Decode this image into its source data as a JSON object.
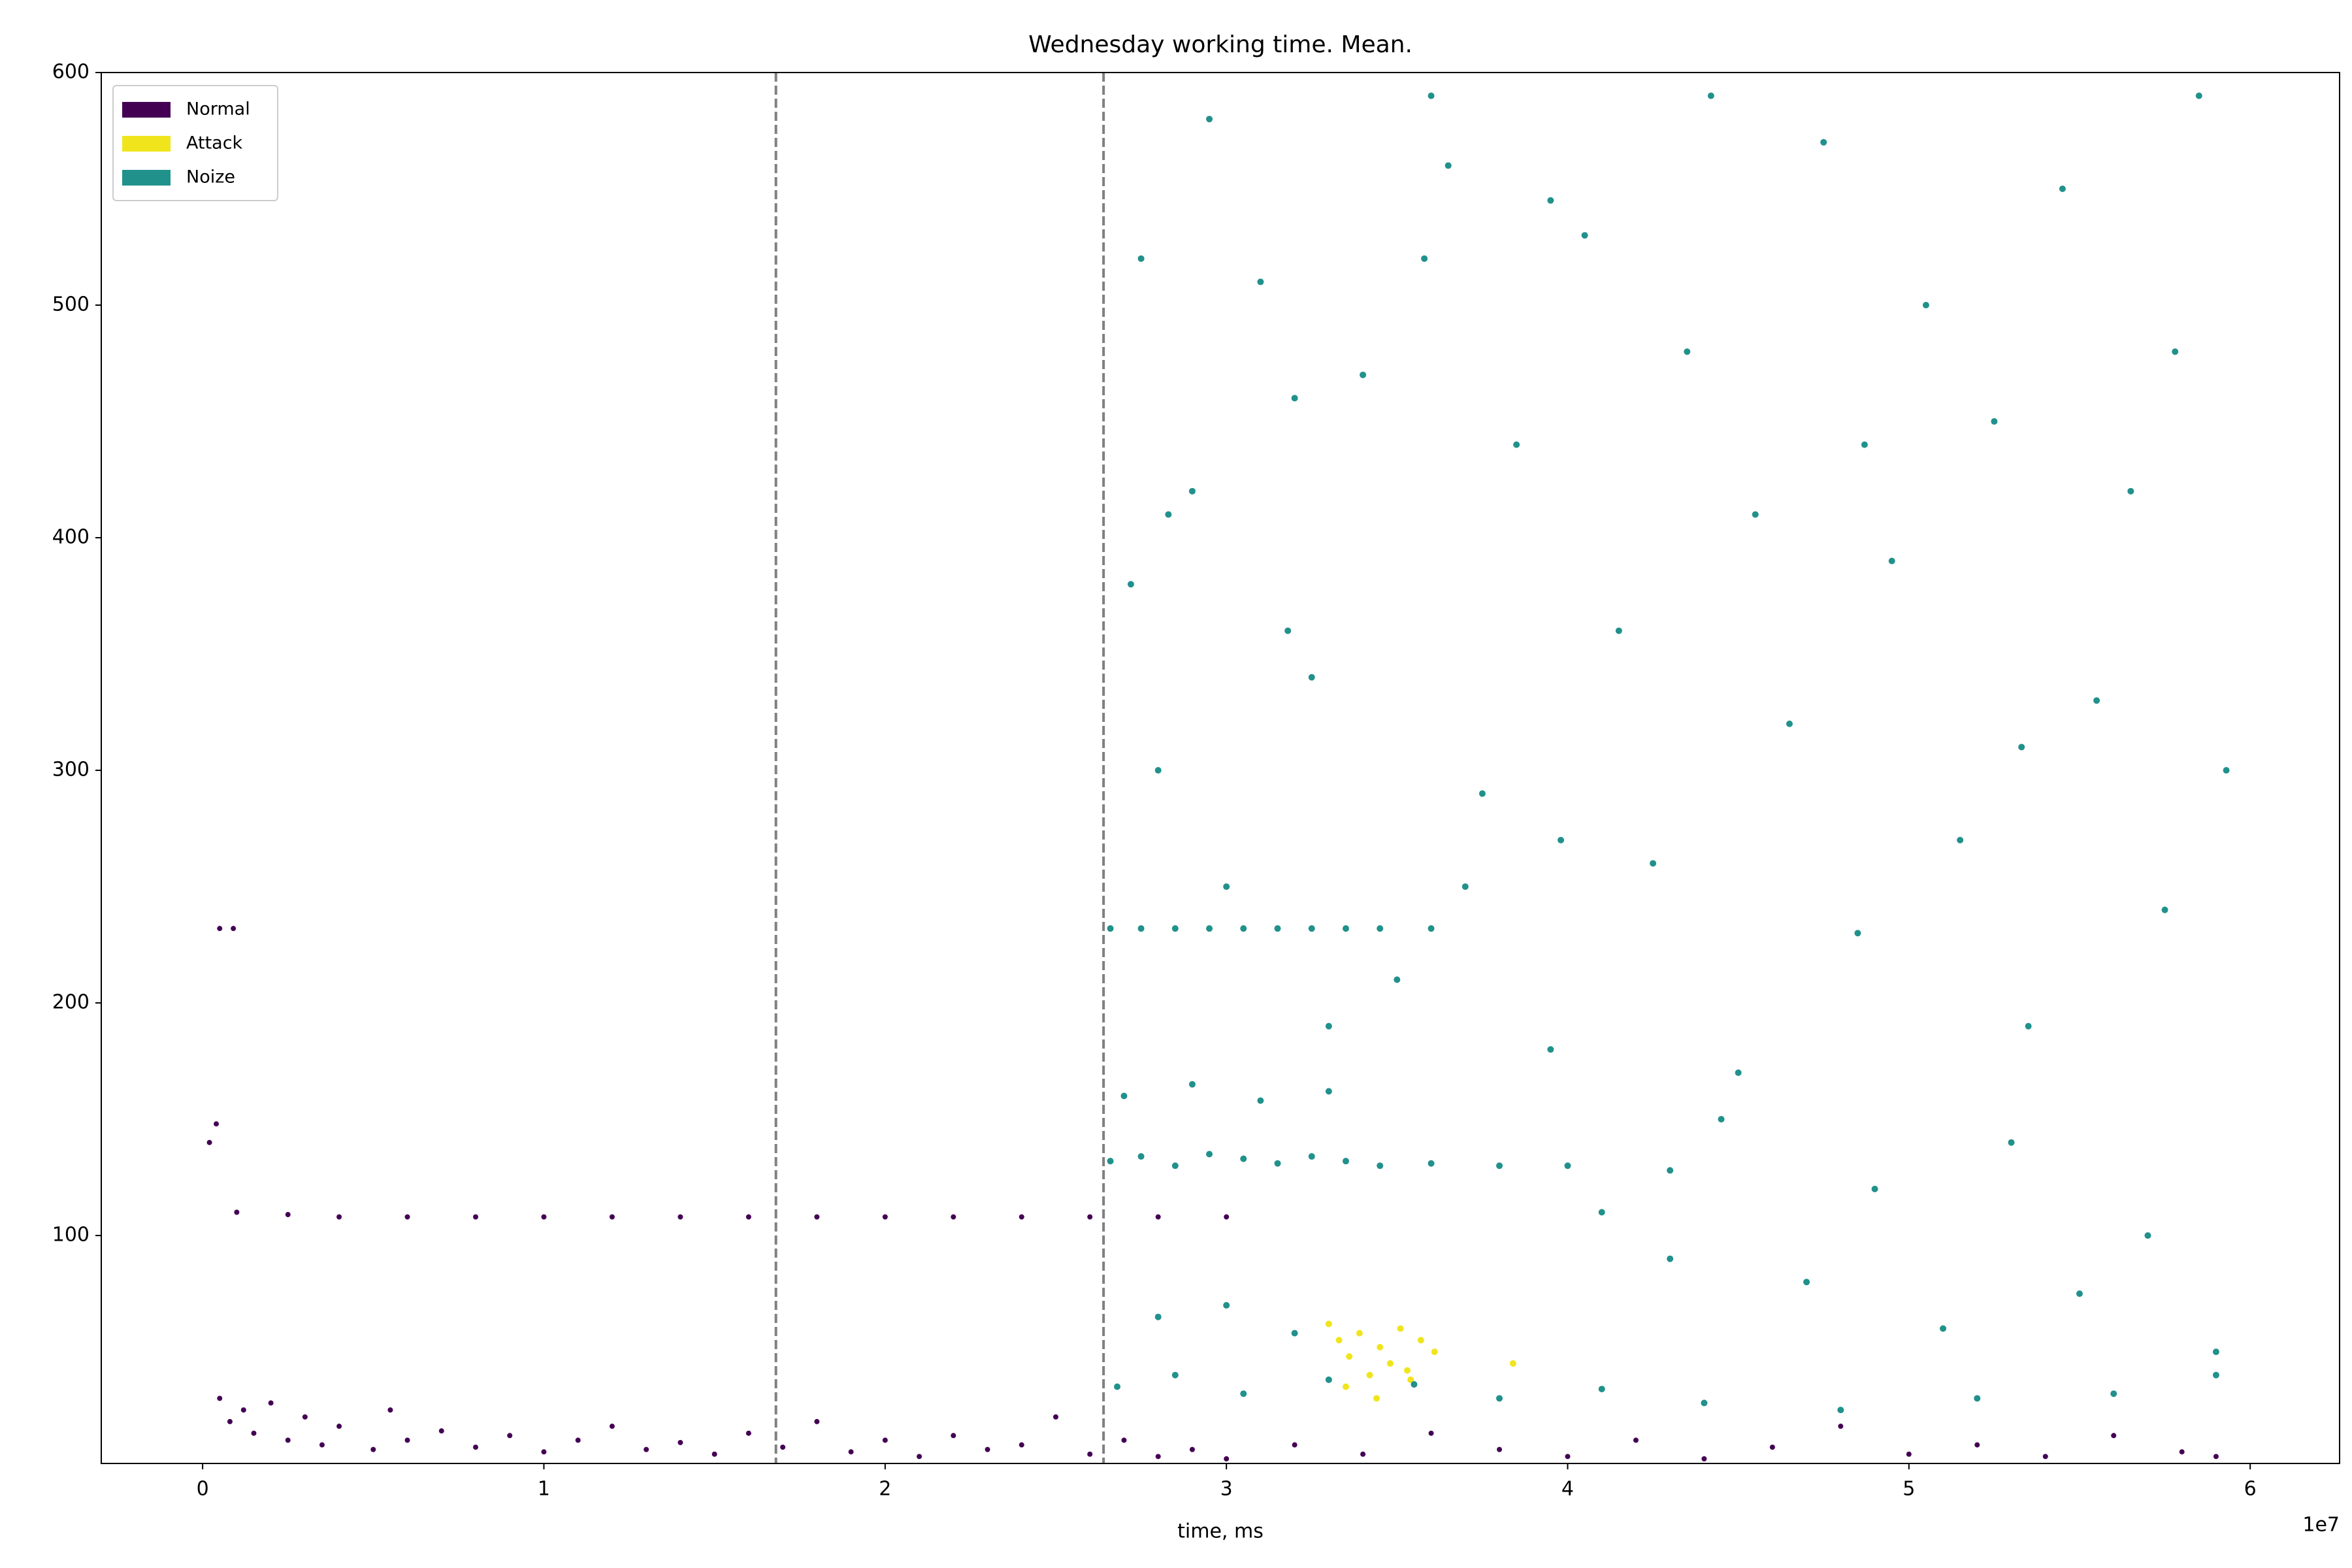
{
  "chart_data": {
    "type": "scatter",
    "title": "Wednesday working time. Mean.",
    "x_label": "time, ms",
    "x_offset_label": "1e7",
    "xlim": [
      -2970000,
      62620000
    ],
    "ylim": [
      2,
      600
    ],
    "xticks": [
      0,
      {
        "value": 10000000,
        "label": "1"
      },
      {
        "value": 20000000,
        "label": "2"
      },
      {
        "value": 30000000,
        "label": "3"
      },
      {
        "value": 40000000,
        "label": "4"
      },
      {
        "value": 50000000,
        "label": "5"
      },
      {
        "value": 60000000,
        "label": "6"
      }
    ],
    "yticks": [
      100,
      200,
      300,
      400,
      500,
      600
    ],
    "vlines": [
      16800000,
      26400000
    ],
    "legend": "upper left",
    "series": [
      {
        "name": "Normal",
        "color": "#440154",
        "x": [
          500000,
          900000,
          200000,
          400000,
          1000000,
          2500000,
          4000000,
          6000000,
          8000000,
          10000000,
          12000000,
          14000000,
          16000000,
          18000000,
          20000000,
          22000000,
          24000000,
          26000000,
          28000000,
          30000000,
          500000,
          800000,
          1200000,
          1500000,
          2000000,
          2500000,
          3000000,
          3500000,
          4000000,
          5000000,
          5500000,
          6000000,
          7000000,
          8000000,
          9000000,
          10000000,
          11000000,
          12000000,
          13000000,
          14000000,
          15000000,
          16000000,
          17000000,
          18000000,
          19000000,
          20000000,
          21000000,
          22000000,
          23000000,
          24000000,
          25000000,
          26000000,
          27000000,
          28000000,
          29000000,
          30000000,
          32000000,
          34000000,
          36000000,
          38000000,
          40000000,
          42000000,
          44000000,
          46000000,
          48000000,
          50000000,
          52000000,
          54000000,
          56000000,
          58000000,
          59000000
        ],
        "values": [
          232,
          232,
          140,
          148,
          110,
          109,
          108,
          108,
          108,
          108,
          108,
          108,
          108,
          108,
          108,
          108,
          108,
          108,
          108,
          108,
          30,
          20,
          25,
          15,
          28,
          12,
          22,
          10,
          18,
          8,
          25,
          12,
          16,
          9,
          14,
          7,
          12,
          18,
          8,
          11,
          6,
          15,
          9,
          20,
          7,
          12,
          5,
          14,
          8,
          10,
          22,
          6,
          12,
          5,
          8,
          4,
          10,
          6,
          15,
          8,
          5,
          12,
          4,
          9,
          18,
          6,
          10,
          5,
          14,
          7,
          5
        ]
      },
      {
        "name": "Attack",
        "color": "#f0e51c",
        "x": [
          33000000,
          33300000,
          33600000,
          33900000,
          34200000,
          34500000,
          34800000,
          35100000,
          35400000,
          35700000,
          36100000,
          38400000,
          33500000,
          34400000,
          35300000
        ],
        "values": [
          62,
          55,
          48,
          58,
          40,
          52,
          45,
          60,
          38,
          55,
          50,
          45,
          35,
          30,
          42
        ]
      },
      {
        "name": "Noize",
        "color": "#21918c",
        "x": [
          26600000,
          27500000,
          28500000,
          29500000,
          30500000,
          31500000,
          32500000,
          33500000,
          34500000,
          36000000,
          26600000,
          27500000,
          28500000,
          29500000,
          30500000,
          31500000,
          32500000,
          33500000,
          34500000,
          36000000,
          38000000,
          40000000,
          43000000,
          27000000,
          29000000,
          31000000,
          33000000,
          28000000,
          30000000,
          32000000,
          26800000,
          28500000,
          30500000,
          33000000,
          35500000,
          38000000,
          41000000,
          44000000,
          48000000,
          52000000,
          56000000,
          59000000,
          27500000,
          29500000,
          32000000,
          36000000,
          39500000,
          27200000,
          28000000,
          29000000,
          30000000,
          31000000,
          32500000,
          34000000,
          35000000,
          36500000,
          37500000,
          38500000,
          39500000,
          40500000,
          41500000,
          42500000,
          43500000,
          44500000,
          45500000,
          46500000,
          47500000,
          48500000,
          49500000,
          50500000,
          51500000,
          52500000,
          53500000,
          54500000,
          55500000,
          56500000,
          57500000,
          58500000,
          59300000,
          41000000,
          45000000,
          49000000,
          53000000,
          57000000,
          33000000,
          37000000,
          43000000,
          47000000,
          51000000,
          55000000,
          59000000,
          28300000,
          31800000,
          35800000,
          39800000,
          44200000,
          48700000,
          53300000,
          57800000
        ],
        "values": [
          232,
          232,
          232,
          232,
          232,
          232,
          232,
          232,
          232,
          232,
          132,
          134,
          130,
          135,
          133,
          131,
          134,
          132,
          130,
          131,
          130,
          130,
          128,
          160,
          165,
          158,
          162,
          65,
          70,
          58,
          35,
          40,
          32,
          38,
          36,
          30,
          34,
          28,
          25,
          30,
          32,
          40,
          520,
          580,
          460,
          590,
          545,
          380,
          300,
          420,
          250,
          510,
          340,
          470,
          210,
          560,
          290,
          440,
          180,
          530,
          360,
          260,
          480,
          150,
          410,
          320,
          570,
          230,
          390,
          500,
          270,
          450,
          190,
          550,
          330,
          420,
          240,
          590,
          300,
          110,
          170,
          120,
          140,
          100,
          190,
          250,
          90,
          80,
          60,
          75,
          50,
          410,
          360,
          520,
          270,
          590,
          440,
          310,
          480
        ]
      }
    ]
  }
}
